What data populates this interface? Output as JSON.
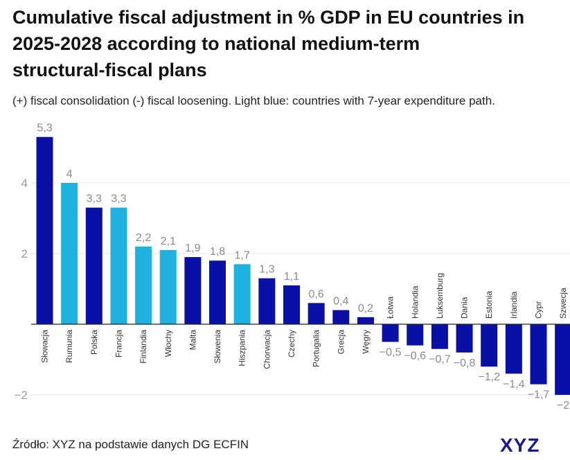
{
  "title": {
    "line1": "Cumulative fiscal adjustment in % GDP in EU countries in",
    "line2": "2025-2028 according to national medium-term",
    "line3": "structural-fiscal plans"
  },
  "subtitle": "(+) fiscal consolidation (-) fiscal loosening. Light blue: countries with 7-year expenditure path.",
  "footer": {
    "source": "Źródło: XYZ na podstawie danych DG ECFIN"
  },
  "logo": {
    "text": "XYZ",
    "color_primary": "#1a1a8c",
    "color_accent": "#e0244a"
  },
  "colors": {
    "dark_blue": "#0a0fa5",
    "light_blue": "#1fb2e0",
    "grid": "#e6e6e6",
    "axis": "#222222"
  },
  "chart_data": {
    "type": "bar",
    "title": "Cumulative fiscal adjustment in % GDP in EU countries in 2025-2028 according to national medium-term structural-fiscal plans",
    "xlabel": "",
    "ylabel": "",
    "ylim": [
      -2.2,
      5.6
    ],
    "yticks": [
      -2,
      2,
      4
    ],
    "ytick_labels": [
      "−2",
      "2",
      "4"
    ],
    "categories": [
      "Słowacja",
      "Rumunia",
      "Polska",
      "Francja",
      "Finlandia",
      "Włochy",
      "Malta",
      "Słowenia",
      "Hiszpania",
      "Chorwacja",
      "Czechy",
      "Portugalia",
      "Grecja",
      "Węgry",
      "Łotwa",
      "Holandia",
      "Luksemburg",
      "Dania",
      "Estonia",
      "Irlandia",
      "Cypr",
      "Szwecja"
    ],
    "values": [
      5.3,
      4,
      3.3,
      3.3,
      2.2,
      2.1,
      1.9,
      1.8,
      1.7,
      1.3,
      1.1,
      0.6,
      0.4,
      0.2,
      -0.5,
      -0.6,
      -0.7,
      -0.8,
      -1.2,
      -1.4,
      -1.7,
      -2
    ],
    "value_labels": [
      "5,3",
      "4",
      "3,3",
      "3,3",
      "2,2",
      "2,1",
      "1,9",
      "1,8",
      "1,7",
      "1,3",
      "1,1",
      "0,6",
      "0,4",
      "0,2",
      "−0,5",
      "−0,6",
      "−0,7",
      "−0,8",
      "−1,2",
      "−1,4",
      "−1,7",
      "−2"
    ],
    "seven_year_path": [
      false,
      true,
      false,
      true,
      true,
      true,
      false,
      false,
      true,
      false,
      false,
      false,
      false,
      false,
      false,
      false,
      false,
      false,
      false,
      false,
      false,
      false
    ]
  }
}
